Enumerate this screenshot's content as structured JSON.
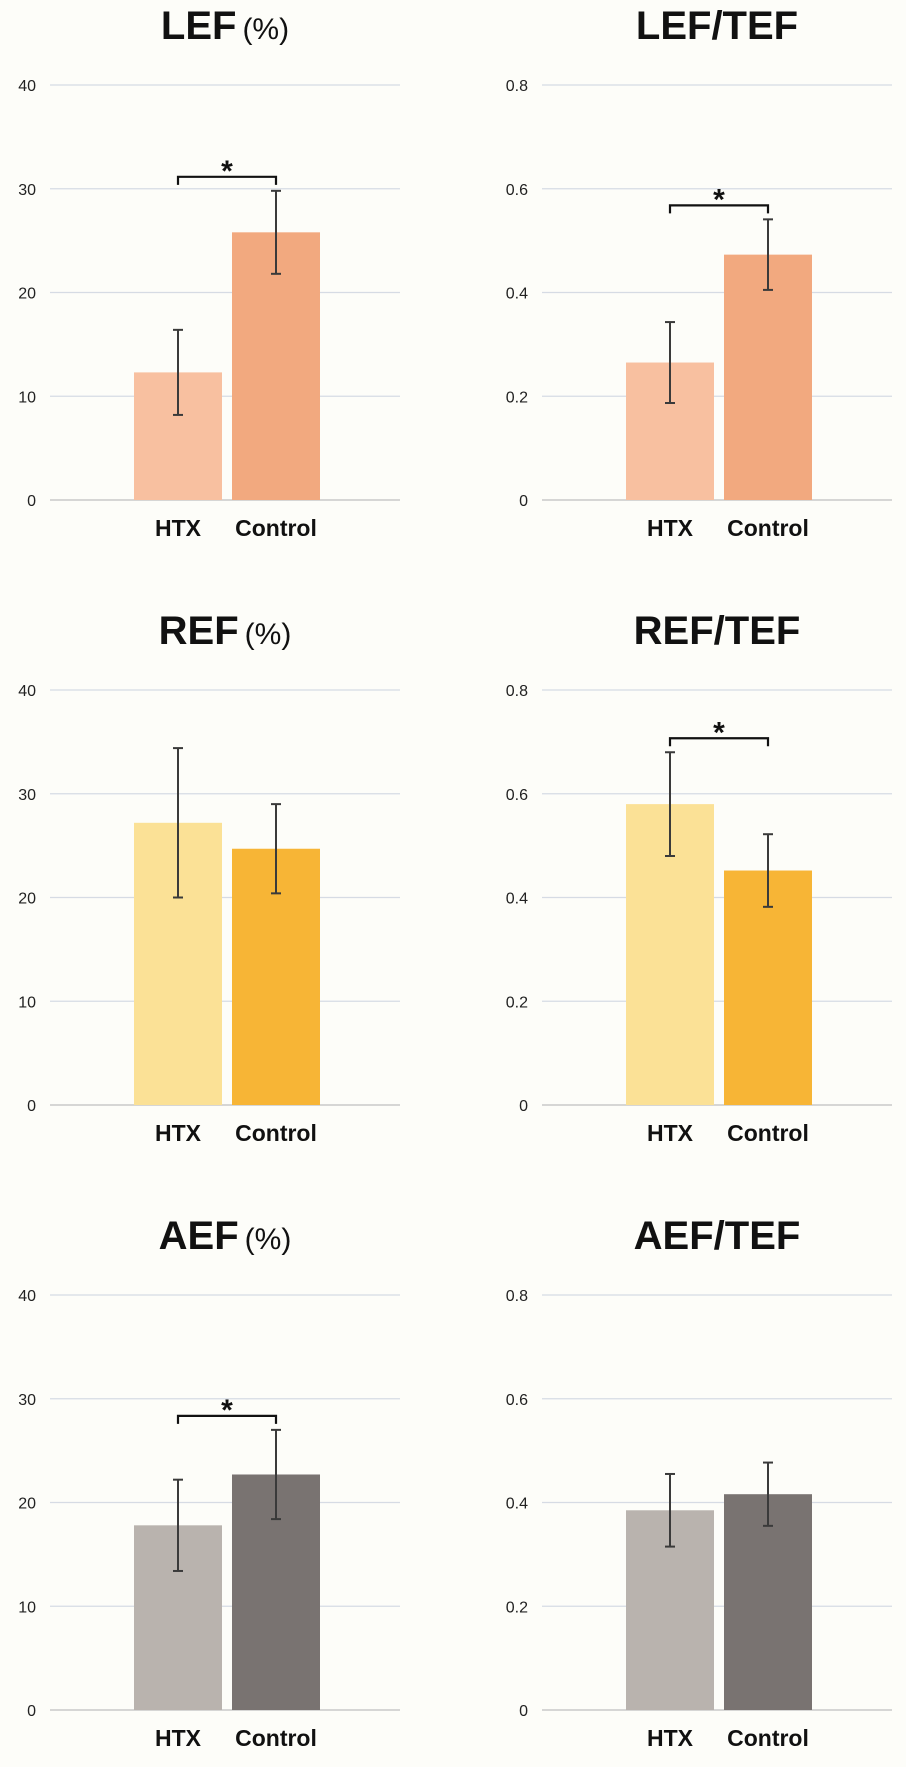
{
  "chart_data": [
    {
      "type": "bar",
      "title": "LEF",
      "unit": "(%)",
      "categories": [
        "HTX",
        "Control"
      ],
      "values": [
        12.3,
        25.8
      ],
      "errors": [
        4.1,
        4.0
      ],
      "colors": [
        "#f8c0a0",
        "#f2a97f"
      ],
      "ylim": [
        0,
        40
      ],
      "yticks": [
        "0",
        "10",
        "20",
        "30",
        "40"
      ],
      "significance": "*",
      "grid": true
    },
    {
      "type": "bar",
      "title": "LEF/TEF",
      "unit": "",
      "categories": [
        "HTX",
        "Control"
      ],
      "values": [
        0.265,
        0.473
      ],
      "errors": [
        0.078,
        0.068
      ],
      "colors": [
        "#f8c0a0",
        "#f2a97f"
      ],
      "ylim": [
        0,
        0.8
      ],
      "yticks": [
        "0",
        "0.2",
        "0.4",
        "0.6",
        "0.8"
      ],
      "significance": "*",
      "grid": true
    },
    {
      "type": "bar",
      "title": "REF",
      "unit": "(%)",
      "categories": [
        "HTX",
        "Control"
      ],
      "values": [
        27.2,
        24.7
      ],
      "errors": [
        7.2,
        4.3
      ],
      "colors": [
        "#fbe196",
        "#f7b536"
      ],
      "ylim": [
        0,
        40
      ],
      "yticks": [
        "0",
        "10",
        "20",
        "30",
        "40"
      ],
      "significance": "",
      "grid": true
    },
    {
      "type": "bar",
      "title": "REF/TEF",
      "unit": "",
      "categories": [
        "HTX",
        "Control"
      ],
      "values": [
        0.58,
        0.452
      ],
      "errors": [
        0.1,
        0.07
      ],
      "colors": [
        "#fbe196",
        "#f7b536"
      ],
      "ylim": [
        0,
        0.8
      ],
      "yticks": [
        "0",
        "0.2",
        "0.4",
        "0.6",
        "0.8"
      ],
      "significance": "*",
      "grid": true
    },
    {
      "type": "bar",
      "title": "AEF",
      "unit": "(%)",
      "categories": [
        "HTX",
        "Control"
      ],
      "values": [
        17.8,
        22.7
      ],
      "errors": [
        4.4,
        4.3
      ],
      "colors": [
        "#b9b3ae",
        "#797371"
      ],
      "ylim": [
        0,
        40
      ],
      "yticks": [
        "0",
        "10",
        "20",
        "30",
        "40"
      ],
      "significance": "*",
      "grid": true
    },
    {
      "type": "bar",
      "title": "AEF/TEF",
      "unit": "",
      "categories": [
        "HTX",
        "Control"
      ],
      "values": [
        0.385,
        0.416
      ],
      "errors": [
        0.07,
        0.061
      ],
      "colors": [
        "#b9b3ae",
        "#797371"
      ],
      "ylim": [
        0,
        0.8
      ],
      "yticks": [
        "0",
        "0.2",
        "0.4",
        "0.6",
        "0.8"
      ],
      "significance": "",
      "grid": true
    }
  ]
}
